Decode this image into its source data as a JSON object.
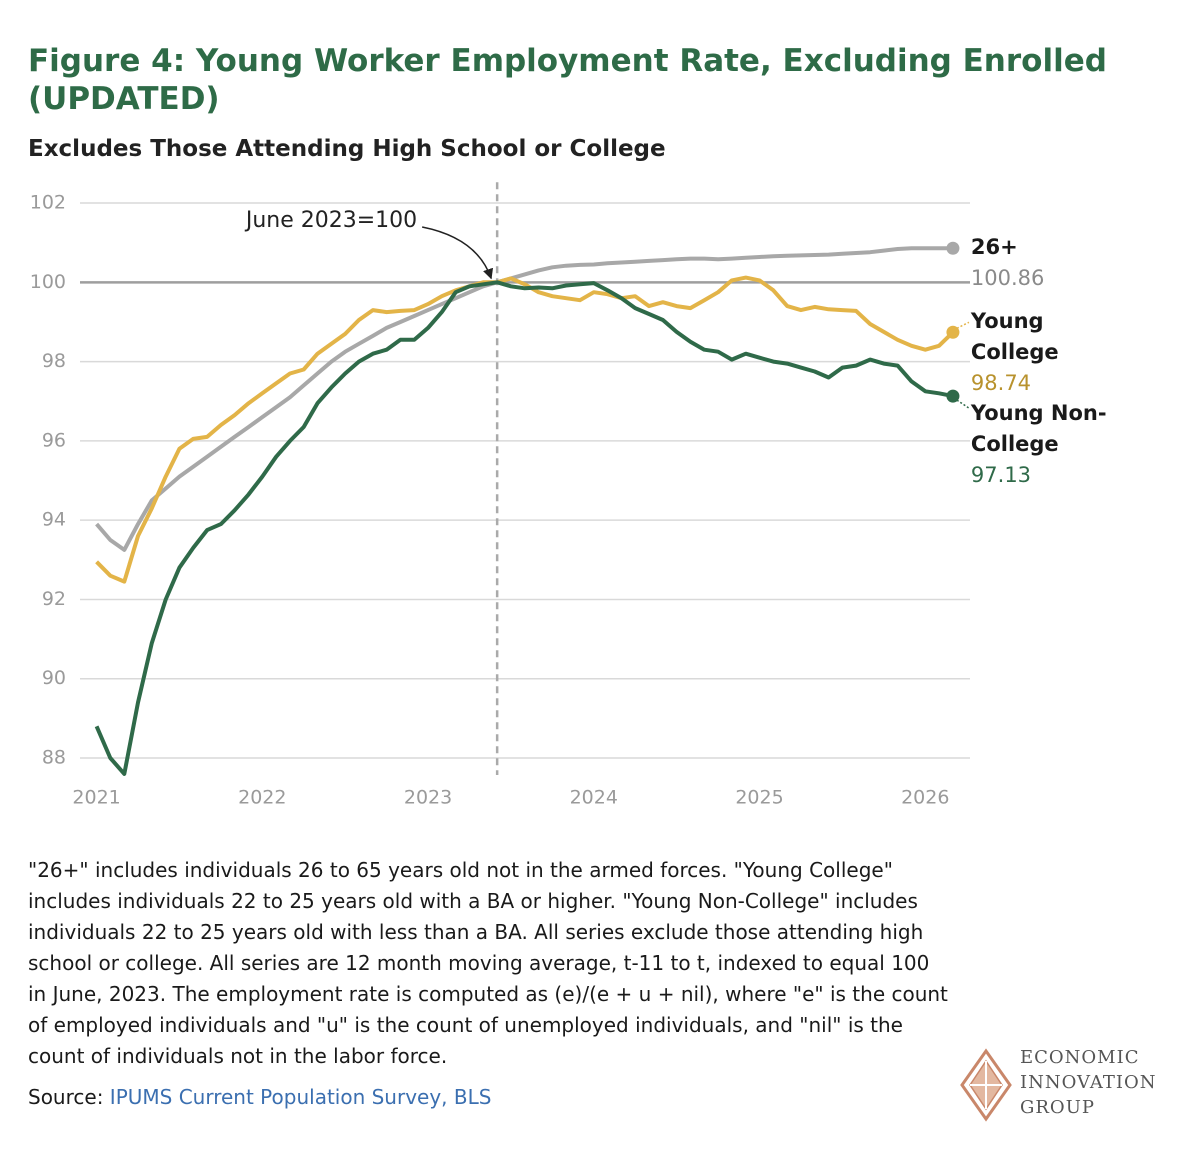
{
  "chart_data": {
    "type": "line",
    "title": "Figure 4: Young Worker Employment Rate, Excluding Enrolled (UPDATED)",
    "subtitle": "Excludes Those Attending High School or College",
    "annotation": {
      "text": "June 2023=100",
      "x": 2023.417
    },
    "reference_y": 100,
    "x": [
      2021,
      2021.083,
      2021.167,
      2021.25,
      2021.333,
      2021.417,
      2021.5,
      2021.583,
      2021.667,
      2021.75,
      2021.833,
      2021.917,
      2022,
      2022.083,
      2022.167,
      2022.25,
      2022.333,
      2022.417,
      2022.5,
      2022.583,
      2022.667,
      2022.75,
      2022.833,
      2022.917,
      2023,
      2023.083,
      2023.167,
      2023.25,
      2023.333,
      2023.417,
      2023.5,
      2023.583,
      2023.667,
      2023.75,
      2023.833,
      2023.917,
      2024,
      2024.083,
      2024.167,
      2024.25,
      2024.333,
      2024.417,
      2024.5,
      2024.583,
      2024.667,
      2024.75,
      2024.833,
      2024.917,
      2025,
      2025.083,
      2025.167,
      2025.25,
      2025.333,
      2025.417,
      2025.5,
      2025.583,
      2025.667,
      2025.75,
      2025.833,
      2025.917,
      2026,
      2026.083,
      2026.167
    ],
    "series": [
      {
        "name": "26+",
        "color": "#a8a8a8",
        "label_color": "#8a8a8a",
        "values": [
          93.9,
          93.5,
          93.25,
          93.9,
          94.5,
          94.8,
          95.1,
          95.35,
          95.6,
          95.85,
          96.1,
          96.35,
          96.6,
          96.85,
          97.1,
          97.4,
          97.7,
          98.0,
          98.25,
          98.45,
          98.65,
          98.85,
          99.0,
          99.15,
          99.3,
          99.45,
          99.6,
          99.75,
          99.9,
          100,
          100.1,
          100.2,
          100.3,
          100.38,
          100.42,
          100.44,
          100.45,
          100.48,
          100.5,
          100.52,
          100.54,
          100.56,
          100.58,
          100.6,
          100.6,
          100.58,
          100.6,
          100.62,
          100.64,
          100.66,
          100.67,
          100.68,
          100.69,
          100.7,
          100.72,
          100.74,
          100.76,
          100.8,
          100.84,
          100.86,
          100.86,
          100.86,
          100.86
        ]
      },
      {
        "name": "Young College",
        "color": "#e3b448",
        "label_color": "#b8922d",
        "values": [
          92.95,
          92.6,
          92.45,
          93.6,
          94.3,
          95.1,
          95.8,
          96.05,
          96.1,
          96.4,
          96.65,
          96.95,
          97.2,
          97.45,
          97.7,
          97.8,
          98.2,
          98.45,
          98.7,
          99.05,
          99.3,
          99.25,
          99.28,
          99.3,
          99.45,
          99.65,
          99.8,
          99.9,
          100.0,
          100,
          100.1,
          99.95,
          99.75,
          99.65,
          99.6,
          99.55,
          99.75,
          99.7,
          99.6,
          99.65,
          99.4,
          99.5,
          99.4,
          99.35,
          99.55,
          99.75,
          100.05,
          100.12,
          100.05,
          99.8,
          99.4,
          99.3,
          99.38,
          99.32,
          99.3,
          99.28,
          98.95,
          98.75,
          98.55,
          98.4,
          98.3,
          98.4,
          98.74
        ]
      },
      {
        "name": "Young Non-College",
        "color": "#2f6a49",
        "label_color": "#2f6a49",
        "values": [
          88.8,
          88.0,
          87.6,
          89.4,
          90.9,
          92.0,
          92.8,
          93.3,
          93.75,
          93.9,
          94.25,
          94.65,
          95.1,
          95.6,
          96.0,
          96.35,
          96.95,
          97.35,
          97.7,
          98.0,
          98.2,
          98.3,
          98.55,
          98.55,
          98.85,
          99.25,
          99.75,
          99.9,
          99.95,
          100,
          99.9,
          99.85,
          99.87,
          99.85,
          99.92,
          99.95,
          99.98,
          99.8,
          99.6,
          99.35,
          99.2,
          99.05,
          98.75,
          98.5,
          98.3,
          98.25,
          98.05,
          98.2,
          98.1,
          98.0,
          97.95,
          97.85,
          97.75,
          97.6,
          97.85,
          97.9,
          98.05,
          97.95,
          97.9,
          97.5,
          97.25,
          97.2,
          97.13
        ]
      }
    ],
    "xlim": [
      2020.9,
      2026.27
    ],
    "xticks": [
      2021,
      2022,
      2023,
      2024,
      2025,
      2026
    ],
    "ylim": [
      87.4,
      102.4
    ],
    "yticks": [
      88,
      90,
      92,
      94,
      96,
      98,
      100,
      102
    ],
    "grid": true
  },
  "notes": "\"26+\" includes individuals 26 to 65 years old not in the armed forces. \"Young College\" includes individuals 22 to 25 years old with a BA or higher. \"Young Non-College\" includes individuals 22 to 25 years old with less than a BA. All series exclude those attending high school or college. All series are 12 month moving average, t-11 to t, indexed to equal 100 in June, 2023. The employment rate is computed as (e)/(e + u + nil), where \"e\" is the count of employed individuals and \"u\" is the count of unemployed individuals, and \"nil\" is the count of individuals not in the labor force.",
  "source": {
    "label": "Source:",
    "link": "IPUMS Current Population Survey, BLS"
  },
  "logo": [
    "ECONOMIC",
    "INNOVATION",
    "GROUP"
  ]
}
